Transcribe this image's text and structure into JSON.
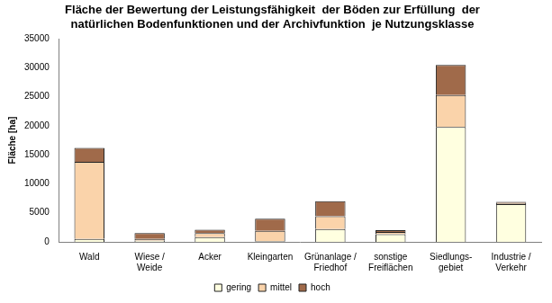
{
  "chart_data": {
    "type": "bar",
    "title": [
      "Fläche der Bewertung der Leistungsfähigkeit  der Böden zur Erfüllung  der",
      "natürlichen Bodenfunktionen und der Archivfunktion  je Nutzungsklasse"
    ],
    "y_label": "Fläche [ha]",
    "categories": [
      [
        "Wald"
      ],
      [
        "Wiese /",
        "Weide"
      ],
      [
        "Acker"
      ],
      [
        "Kleingarten"
      ],
      [
        "Grünanlage /",
        "Friedhof"
      ],
      [
        "sonstige",
        "Freiflächen"
      ],
      [
        "Siedlungs-",
        "gebiet"
      ],
      [
        "Industrie /",
        "Verkehr"
      ]
    ],
    "series": [
      {
        "name": "gering",
        "color": "#ffffe0",
        "values": [
          500,
          200,
          800,
          100,
          2200,
          1300,
          19800,
          6500
        ]
      },
      {
        "name": "mittel",
        "color": "#fad3aa",
        "values": [
          13300,
          300,
          700,
          1800,
          2200,
          400,
          5500,
          200
        ]
      },
      {
        "name": "hoch",
        "color": "#a06a4a",
        "values": [
          2400,
          1000,
          600,
          2100,
          2600,
          300,
          5200,
          200
        ]
      }
    ],
    "ylim": [
      0,
      35000
    ],
    "yticks": [
      0,
      5000,
      10000,
      15000,
      20000,
      25000,
      30000,
      35000
    ],
    "stacked": true,
    "grid": false,
    "legend": "bottom"
  }
}
